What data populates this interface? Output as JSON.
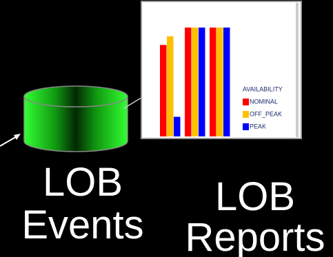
{
  "store": {
    "label_lines": [
      "LOB",
      "Events"
    ]
  },
  "report": {
    "label_lines": [
      "LOB",
      "Reports"
    ]
  },
  "chart_data": {
    "type": "bar",
    "categories": [
      null,
      null,
      null
    ],
    "legend_title": "AVAILABILITY",
    "series": [
      {
        "name": "NOMINAL",
        "color": "#ff0000",
        "values": [
          84,
          100,
          100
        ]
      },
      {
        "name": "OFF_PEAK",
        "color": "#ffc000",
        "values": [
          92,
          100,
          100
        ]
      },
      {
        "name": "PEAK",
        "color": "#0000ff",
        "values": [
          18,
          100,
          100
        ]
      }
    ]
  }
}
